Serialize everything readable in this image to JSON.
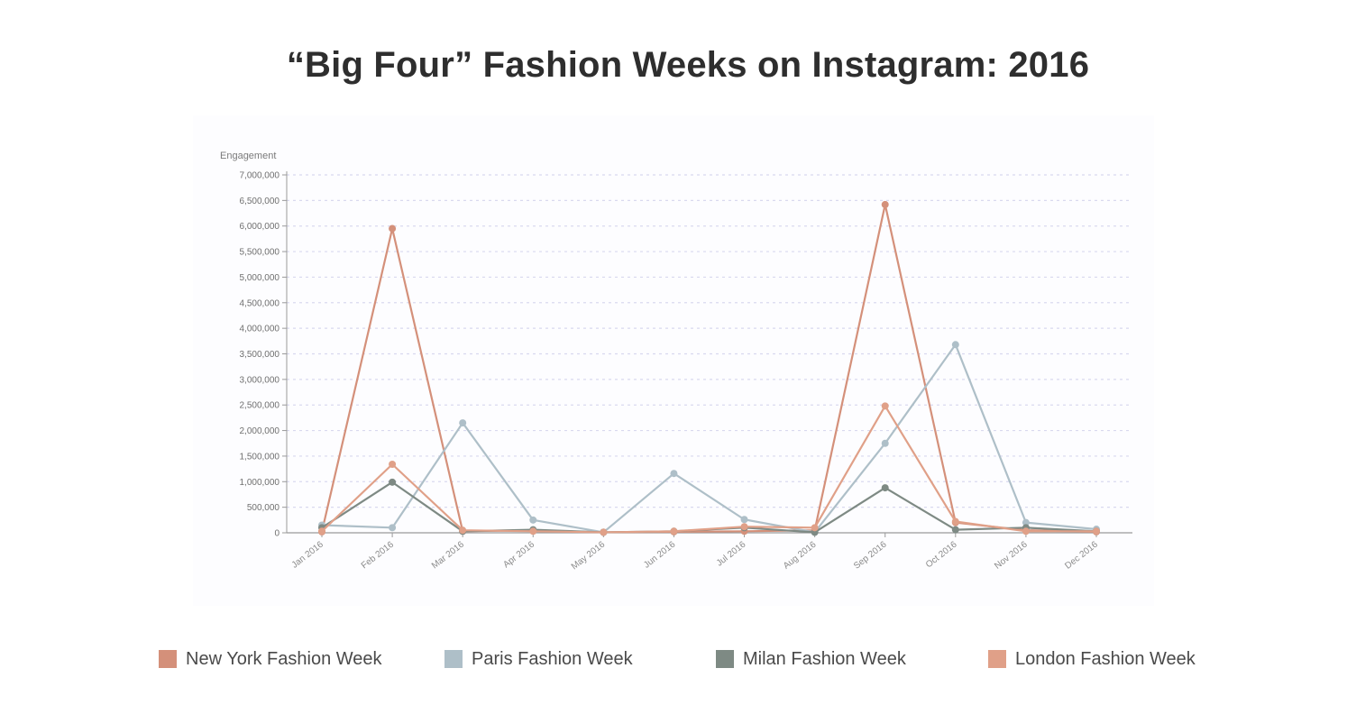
{
  "chart_data": {
    "type": "line",
    "title": "“Big Four” Fashion Weeks on Instagram: 2016",
    "ylabel": "Engagement",
    "xlabel": "",
    "ylim": [
      0,
      7000000
    ],
    "y_ticks": [
      "0",
      "500,000",
      "1,000,000",
      "1,500,000",
      "2,000,000",
      "2,500,000",
      "3,000,000",
      "3,500,000",
      "4,000,000",
      "4,500,000",
      "5,000,000",
      "5,500,000",
      "6,000,000",
      "6,500,000",
      "7,000,000"
    ],
    "grid": true,
    "legend_position": "bottom",
    "categories": [
      "Jan 2016",
      "Feb 2016",
      "Mar 2016",
      "Apr 2016",
      "May 2016",
      "Jun 2016",
      "Jul 2016",
      "Aug 2016",
      "Sep 2016",
      "Oct 2016",
      "Nov 2016",
      "Dec 2016"
    ],
    "series": [
      {
        "name": "New York Fashion Week",
        "color": "#d4907a",
        "values": [
          20000,
          5950000,
          30000,
          50000,
          10000,
          20000,
          30000,
          50000,
          6420000,
          200000,
          50000,
          20000
        ]
      },
      {
        "name": "Paris Fashion Week",
        "color": "#aebfc8",
        "values": [
          150000,
          100000,
          2150000,
          250000,
          10000,
          1160000,
          260000,
          10000,
          1750000,
          3680000,
          200000,
          70000
        ]
      },
      {
        "name": "Milan Fashion Week",
        "color": "#7e8a84",
        "values": [
          100000,
          990000,
          30000,
          60000,
          10000,
          30000,
          100000,
          10000,
          880000,
          60000,
          100000,
          30000
        ]
      },
      {
        "name": "London Fashion Week",
        "color": "#e0a088",
        "values": [
          30000,
          1340000,
          50000,
          30000,
          10000,
          30000,
          120000,
          100000,
          2480000,
          220000,
          30000,
          30000
        ]
      }
    ]
  }
}
